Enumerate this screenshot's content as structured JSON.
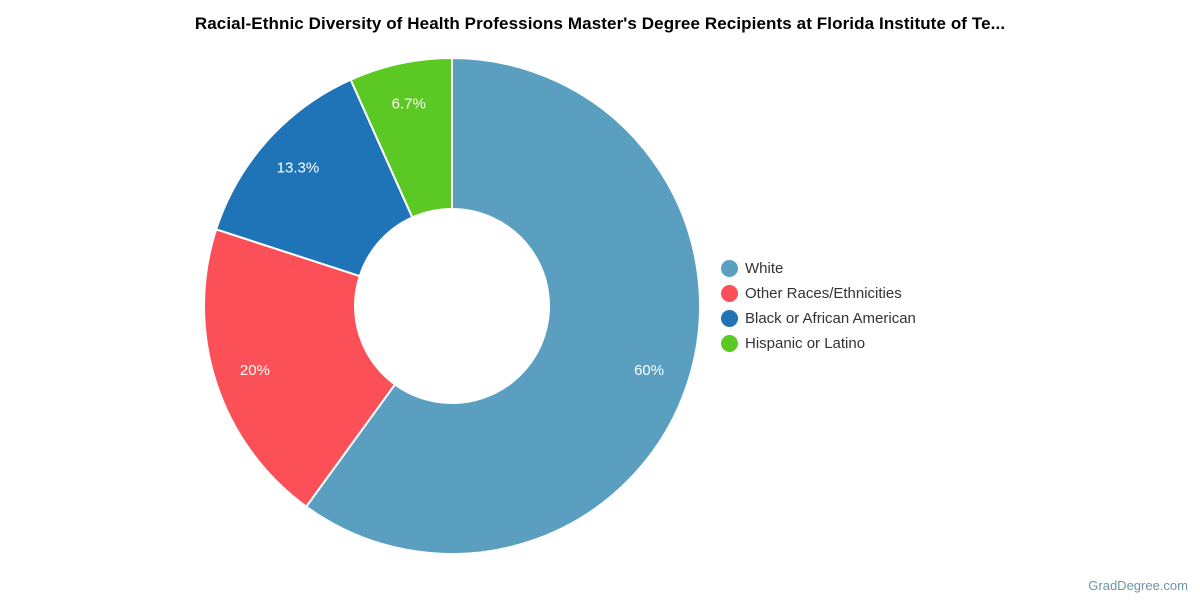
{
  "chart_data": {
    "type": "pie",
    "subtype": "donut",
    "title": "Racial-Ethnic Diversity of Health Professions Master's Degree Recipients at Florida Institute of Te...",
    "legend_position": "right",
    "start_angle_deg": 0,
    "direction": "clockwise",
    "outer_radius_px": 248,
    "inner_radius_px": 97,
    "slice_border_color": "#ffffff",
    "data_label_color": "#ffffff",
    "slices": [
      {
        "label": "White",
        "value": 60,
        "display": "60%",
        "color": "#5A9FBF"
      },
      {
        "label": "Other Races/Ethnicities",
        "value": 20,
        "display": "20%",
        "color": "#FB5057"
      },
      {
        "label": "Black or African American",
        "value": 13.3,
        "display": "13.3%",
        "color": "#1F74B8"
      },
      {
        "label": "Hispanic or Latino",
        "value": 6.7,
        "display": "6.7%",
        "color": "#5CC823"
      }
    ]
  },
  "watermark": {
    "text": "GradDegree.com",
    "color": "#6E94A4"
  }
}
